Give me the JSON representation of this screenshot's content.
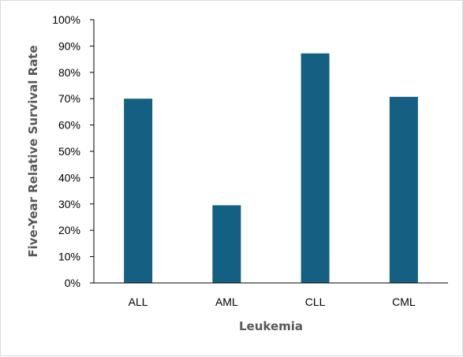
{
  "chart_data": {
    "type": "bar",
    "title": "",
    "xlabel": "Leukemia",
    "ylabel": "Five-Year Relative Survival Rate",
    "categories": [
      "ALL",
      "AML",
      "CLL",
      "CML"
    ],
    "values": [
      0.7,
      0.295,
      0.872,
      0.707
    ],
    "ylim": [
      0,
      1
    ],
    "yticks": [
      "0%",
      "10%",
      "20%",
      "30%",
      "40%",
      "50%",
      "60%",
      "70%",
      "80%",
      "90%",
      "100%"
    ],
    "grid": false,
    "legend": "none",
    "bar_color": "#156082"
  }
}
